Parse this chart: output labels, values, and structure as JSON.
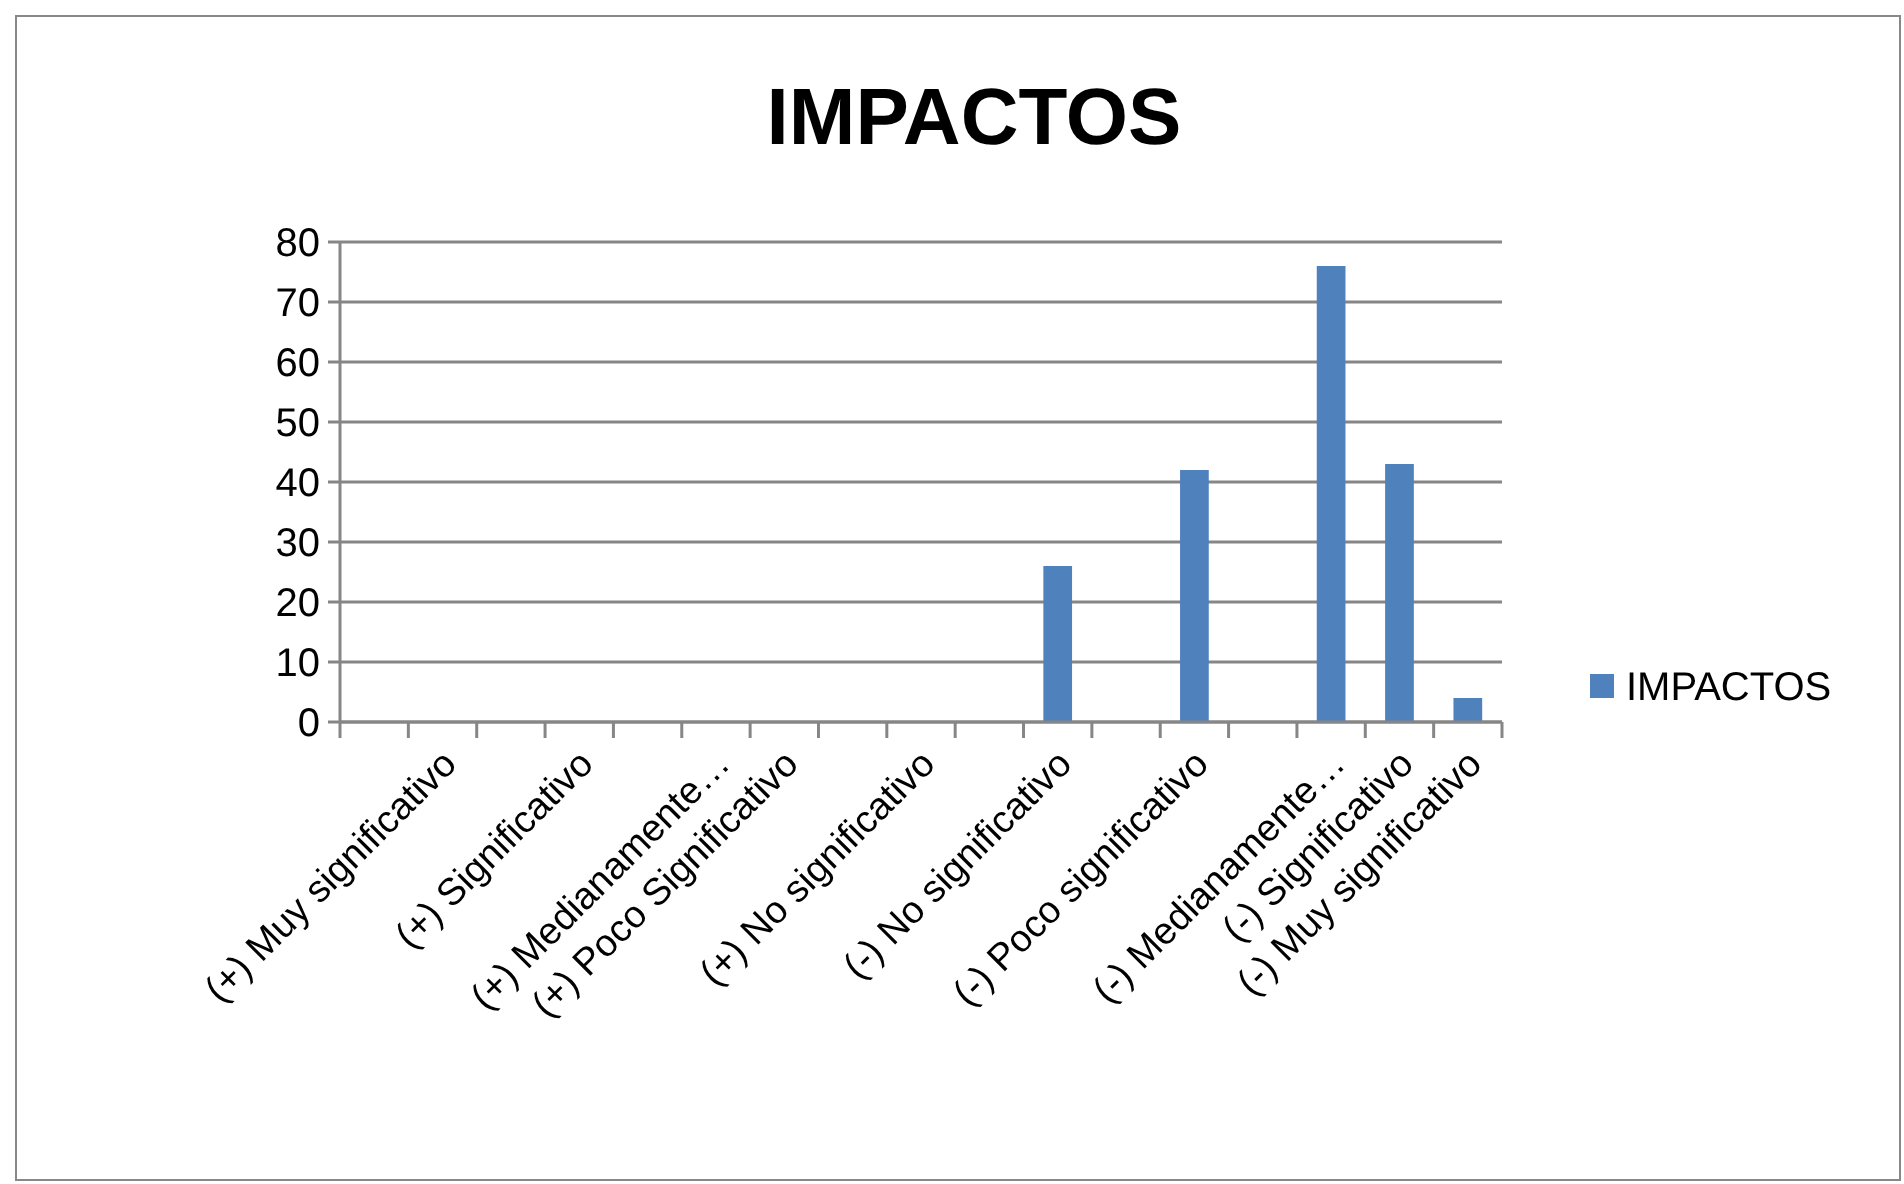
{
  "chart_data": {
    "type": "bar",
    "title": "IMPACTOS",
    "categories": [
      null,
      "(+) Muy significativo",
      null,
      "(+) Significativo",
      null,
      "(+) Medianamente…",
      "(+) Poco Significativo",
      null,
      "(+) No significativo",
      null,
      "(-) No significativo",
      null,
      "(-) Poco significativo",
      null,
      "(-) Medianamente…",
      "(-) Significativo",
      "(-) Muy significativo"
    ],
    "series": [
      {
        "name": "IMPACTOS",
        "color": "#4f81bd",
        "values": [
          null,
          0,
          null,
          0,
          null,
          0,
          0,
          null,
          0,
          null,
          26,
          null,
          42,
          null,
          76,
          43,
          4
        ]
      }
    ],
    "ylim": [
      0,
      80
    ],
    "yticks": [
      0,
      10,
      20,
      30,
      40,
      50,
      60,
      70,
      80
    ],
    "grid": "y",
    "legend": "right"
  }
}
